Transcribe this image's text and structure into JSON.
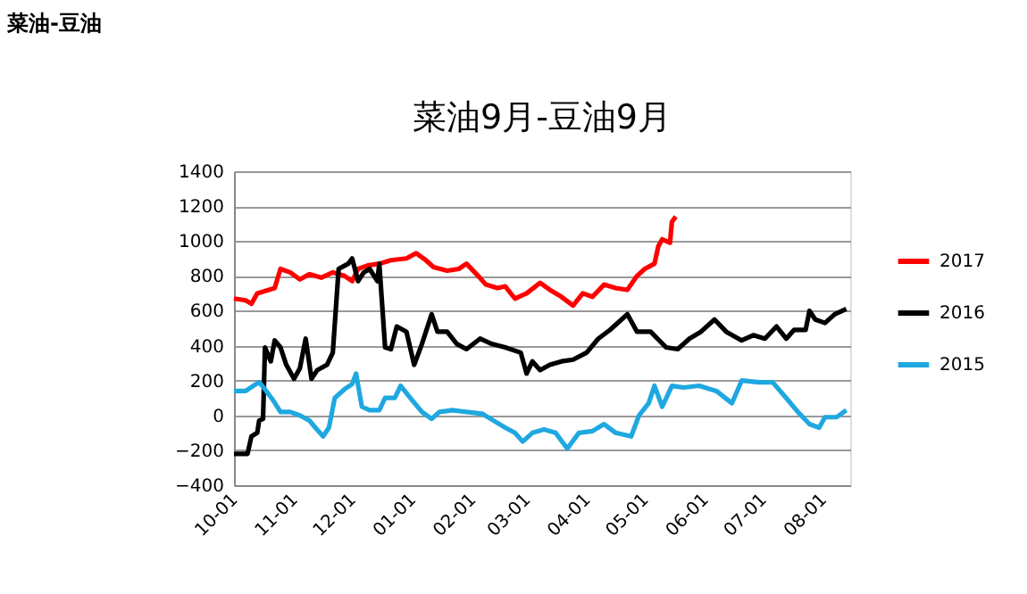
{
  "chart_data": {
    "type": "line",
    "title": "菜油-豆油",
    "subtitle": "菜油9月-豆油9月",
    "ylim": [
      -400,
      1400
    ],
    "yticks": [
      -400,
      -200,
      0,
      200,
      400,
      600,
      800,
      1000,
      1200,
      1400
    ],
    "xlim": [
      "2016-10-01",
      "2017-08-15"
    ],
    "xticks": [
      {
        "value": "2016-10-01",
        "label": "10-01"
      },
      {
        "value": "2016-11-01",
        "label": "11-01"
      },
      {
        "value": "2016-12-01",
        "label": "12-01"
      },
      {
        "value": "2017-01-01",
        "label": "01-01"
      },
      {
        "value": "2017-02-01",
        "label": "02-01"
      },
      {
        "value": "2017-03-01",
        "label": "03-01"
      },
      {
        "value": "2017-04-01",
        "label": "04-01"
      },
      {
        "value": "2017-05-01",
        "label": "05-01"
      },
      {
        "value": "2017-06-01",
        "label": "06-01"
      },
      {
        "value": "2017-07-01",
        "label": "07-01"
      },
      {
        "value": "2017-08-01",
        "label": "08-01"
      }
    ],
    "grid": "y",
    "legend": "right",
    "line_style": "solid",
    "marker": "none",
    "series": [
      {
        "name": "2017",
        "color": "#ff0000",
        "x": [
          "2016-10-01",
          "2016-10-07",
          "2016-10-10",
          "2016-10-13",
          "2016-10-19",
          "2016-10-22",
          "2016-10-25",
          "2016-10-30",
          "2016-11-04",
          "2016-11-09",
          "2016-11-15",
          "2016-11-21",
          "2016-11-27",
          "2016-12-01",
          "2016-12-04",
          "2016-12-09",
          "2016-12-15",
          "2016-12-21",
          "2016-12-29",
          "2017-01-03",
          "2017-01-08",
          "2017-01-12",
          "2017-01-19",
          "2017-01-25",
          "2017-01-29",
          "2017-02-04",
          "2017-02-08",
          "2017-02-14",
          "2017-02-18",
          "2017-02-23",
          "2017-03-01",
          "2017-03-08",
          "2017-03-13",
          "2017-03-19",
          "2017-03-25",
          "2017-03-30",
          "2017-04-04",
          "2017-04-10",
          "2017-04-16",
          "2017-04-22",
          "2017-04-27",
          "2017-05-01",
          "2017-05-06",
          "2017-05-08",
          "2017-05-10",
          "2017-05-14",
          "2017-05-15",
          "2017-05-17"
        ],
        "values": [
          670,
          660,
          640,
          700,
          720,
          730,
          840,
          820,
          780,
          810,
          790,
          820,
          800,
          770,
          840,
          860,
          870,
          890,
          900,
          930,
          890,
          850,
          830,
          840,
          870,
          800,
          750,
          730,
          740,
          670,
          700,
          760,
          720,
          680,
          630,
          700,
          680,
          750,
          730,
          720,
          800,
          840,
          870,
          970,
          1010,
          990,
          1110,
          1140
        ]
      },
      {
        "name": "2016",
        "color": "#000000",
        "x": [
          "2016-10-01",
          "2016-10-08",
          "2016-10-10",
          "2016-10-13",
          "2016-10-14",
          "2016-10-16",
          "2016-10-17",
          "2016-10-20",
          "2016-10-22",
          "2016-10-25",
          "2016-10-28",
          "2016-11-01",
          "2016-11-04",
          "2016-11-07",
          "2016-11-10",
          "2016-11-13",
          "2016-11-18",
          "2016-11-21",
          "2016-11-24",
          "2016-11-29",
          "2016-12-01",
          "2016-12-04",
          "2016-12-07",
          "2016-12-10",
          "2016-12-14",
          "2016-12-15",
          "2016-12-18",
          "2016-12-21",
          "2016-12-24",
          "2016-12-29",
          "2017-01-02",
          "2017-01-06",
          "2017-01-11",
          "2017-01-14",
          "2017-01-19",
          "2017-01-24",
          "2017-01-29",
          "2017-02-05",
          "2017-02-11",
          "2017-02-18",
          "2017-02-26",
          "2017-03-01",
          "2017-03-04",
          "2017-03-08",
          "2017-03-13",
          "2017-03-19",
          "2017-03-25",
          "2017-04-01",
          "2017-04-07",
          "2017-04-13",
          "2017-04-19",
          "2017-04-22",
          "2017-04-27",
          "2017-05-04",
          "2017-05-12",
          "2017-05-18",
          "2017-05-24",
          "2017-05-30",
          "2017-06-06",
          "2017-06-12",
          "2017-06-20",
          "2017-06-26",
          "2017-07-02",
          "2017-07-08",
          "2017-07-13",
          "2017-07-17",
          "2017-07-23",
          "2017-07-25",
          "2017-07-28",
          "2017-08-02",
          "2017-08-07",
          "2017-08-13"
        ],
        "values": [
          -220,
          -220,
          -120,
          -100,
          -30,
          -20,
          390,
          310,
          430,
          390,
          290,
          210,
          270,
          440,
          210,
          260,
          290,
          360,
          840,
          870,
          900,
          770,
          820,
          840,
          770,
          870,
          390,
          380,
          510,
          480,
          290,
          410,
          580,
          480,
          480,
          410,
          380,
          440,
          410,
          390,
          360,
          240,
          310,
          260,
          290,
          310,
          320,
          360,
          440,
          490,
          550,
          580,
          480,
          480,
          390,
          380,
          440,
          480,
          550,
          480,
          430,
          460,
          440,
          510,
          440,
          490,
          490,
          600,
          550,
          530,
          580,
          610
        ]
      },
      {
        "name": "2015",
        "color": "#1fa8e0",
        "x": [
          "2016-10-01",
          "2016-10-07",
          "2016-10-11",
          "2016-10-14",
          "2016-10-17",
          "2016-10-21",
          "2016-10-25",
          "2016-10-30",
          "2016-11-04",
          "2016-11-09",
          "2016-11-12",
          "2016-11-16",
          "2016-11-19",
          "2016-11-22",
          "2016-11-27",
          "2016-12-01",
          "2016-12-03",
          "2016-12-06",
          "2016-12-10",
          "2016-12-15",
          "2016-12-18",
          "2016-12-23",
          "2016-12-26",
          "2016-12-31",
          "2017-01-06",
          "2017-01-11",
          "2017-01-15",
          "2017-01-22",
          "2017-01-29",
          "2017-02-06",
          "2017-02-12",
          "2017-02-18",
          "2017-02-23",
          "2017-02-27",
          "2017-03-04",
          "2017-03-10",
          "2017-03-16",
          "2017-03-22",
          "2017-03-28",
          "2017-04-04",
          "2017-04-10",
          "2017-04-16",
          "2017-04-24",
          "2017-04-28",
          "2017-05-03",
          "2017-05-06",
          "2017-05-10",
          "2017-05-15",
          "2017-05-21",
          "2017-05-29",
          "2017-06-07",
          "2017-06-15",
          "2017-06-20",
          "2017-06-29",
          "2017-07-06",
          "2017-07-13",
          "2017-07-19",
          "2017-07-25",
          "2017-07-30",
          "2017-08-02",
          "2017-08-08",
          "2017-08-13"
        ],
        "values": [
          140,
          140,
          170,
          190,
          150,
          90,
          20,
          20,
          0,
          -30,
          -70,
          -120,
          -70,
          100,
          150,
          180,
          240,
          50,
          30,
          30,
          100,
          100,
          170,
          100,
          20,
          -20,
          20,
          30,
          20,
          10,
          -30,
          -70,
          -100,
          -150,
          -100,
          -80,
          -100,
          -190,
          -100,
          -90,
          -50,
          -100,
          -120,
          0,
          70,
          170,
          50,
          170,
          160,
          170,
          140,
          70,
          200,
          190,
          190,
          100,
          20,
          -50,
          -70,
          -10,
          -10,
          30
        ]
      }
    ]
  }
}
